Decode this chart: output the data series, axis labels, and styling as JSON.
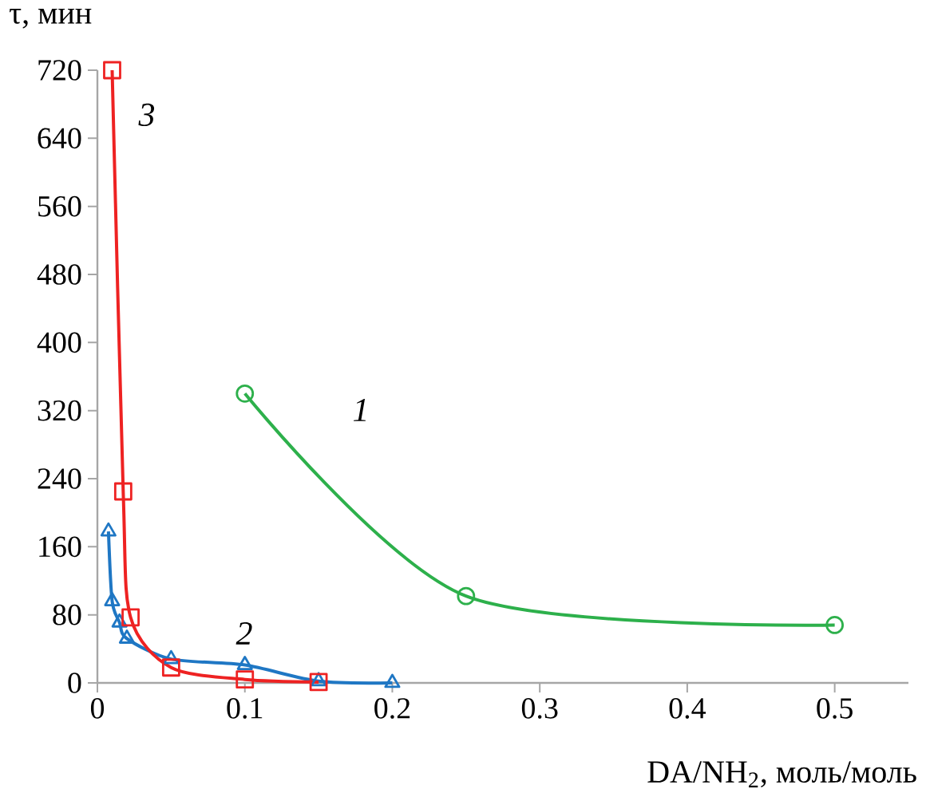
{
  "chart_data": {
    "type": "line",
    "xlabel": "DA/NH$_{2}$, моль/моль",
    "ylabel": "τ, мин",
    "xlim": [
      0,
      0.55
    ],
    "ylim": [
      0,
      720
    ],
    "xticks": [
      0,
      0.1,
      0.2,
      0.3,
      0.4,
      0.5
    ],
    "yticks": [
      0,
      80,
      160,
      240,
      320,
      400,
      480,
      560,
      640,
      720
    ],
    "grid": false,
    "series": [
      {
        "color": "#2db04b",
        "marker": "circle",
        "x": [
          0.1,
          0.25,
          0.5
        ],
        "values": [
          340,
          102,
          68
        ]
      },
      {
        "color": "#1f77c4",
        "marker": "triangle",
        "x": [
          0.0075,
          0.01,
          0.015,
          0.02,
          0.05,
          0.1,
          0.15,
          0.2
        ],
        "values": [
          178,
          96,
          71,
          52,
          28,
          21,
          2,
          0
        ]
      },
      {
        "color": "#ee2222",
        "marker": "square",
        "x": [
          0.01,
          0.0175,
          0.0225,
          0.05,
          0.1,
          0.15
        ],
        "values": [
          720,
          225,
          77,
          18,
          4,
          1
        ]
      }
    ],
    "annotations": [
      "*1*",
      "*2*",
      "*3*"
    ]
  }
}
